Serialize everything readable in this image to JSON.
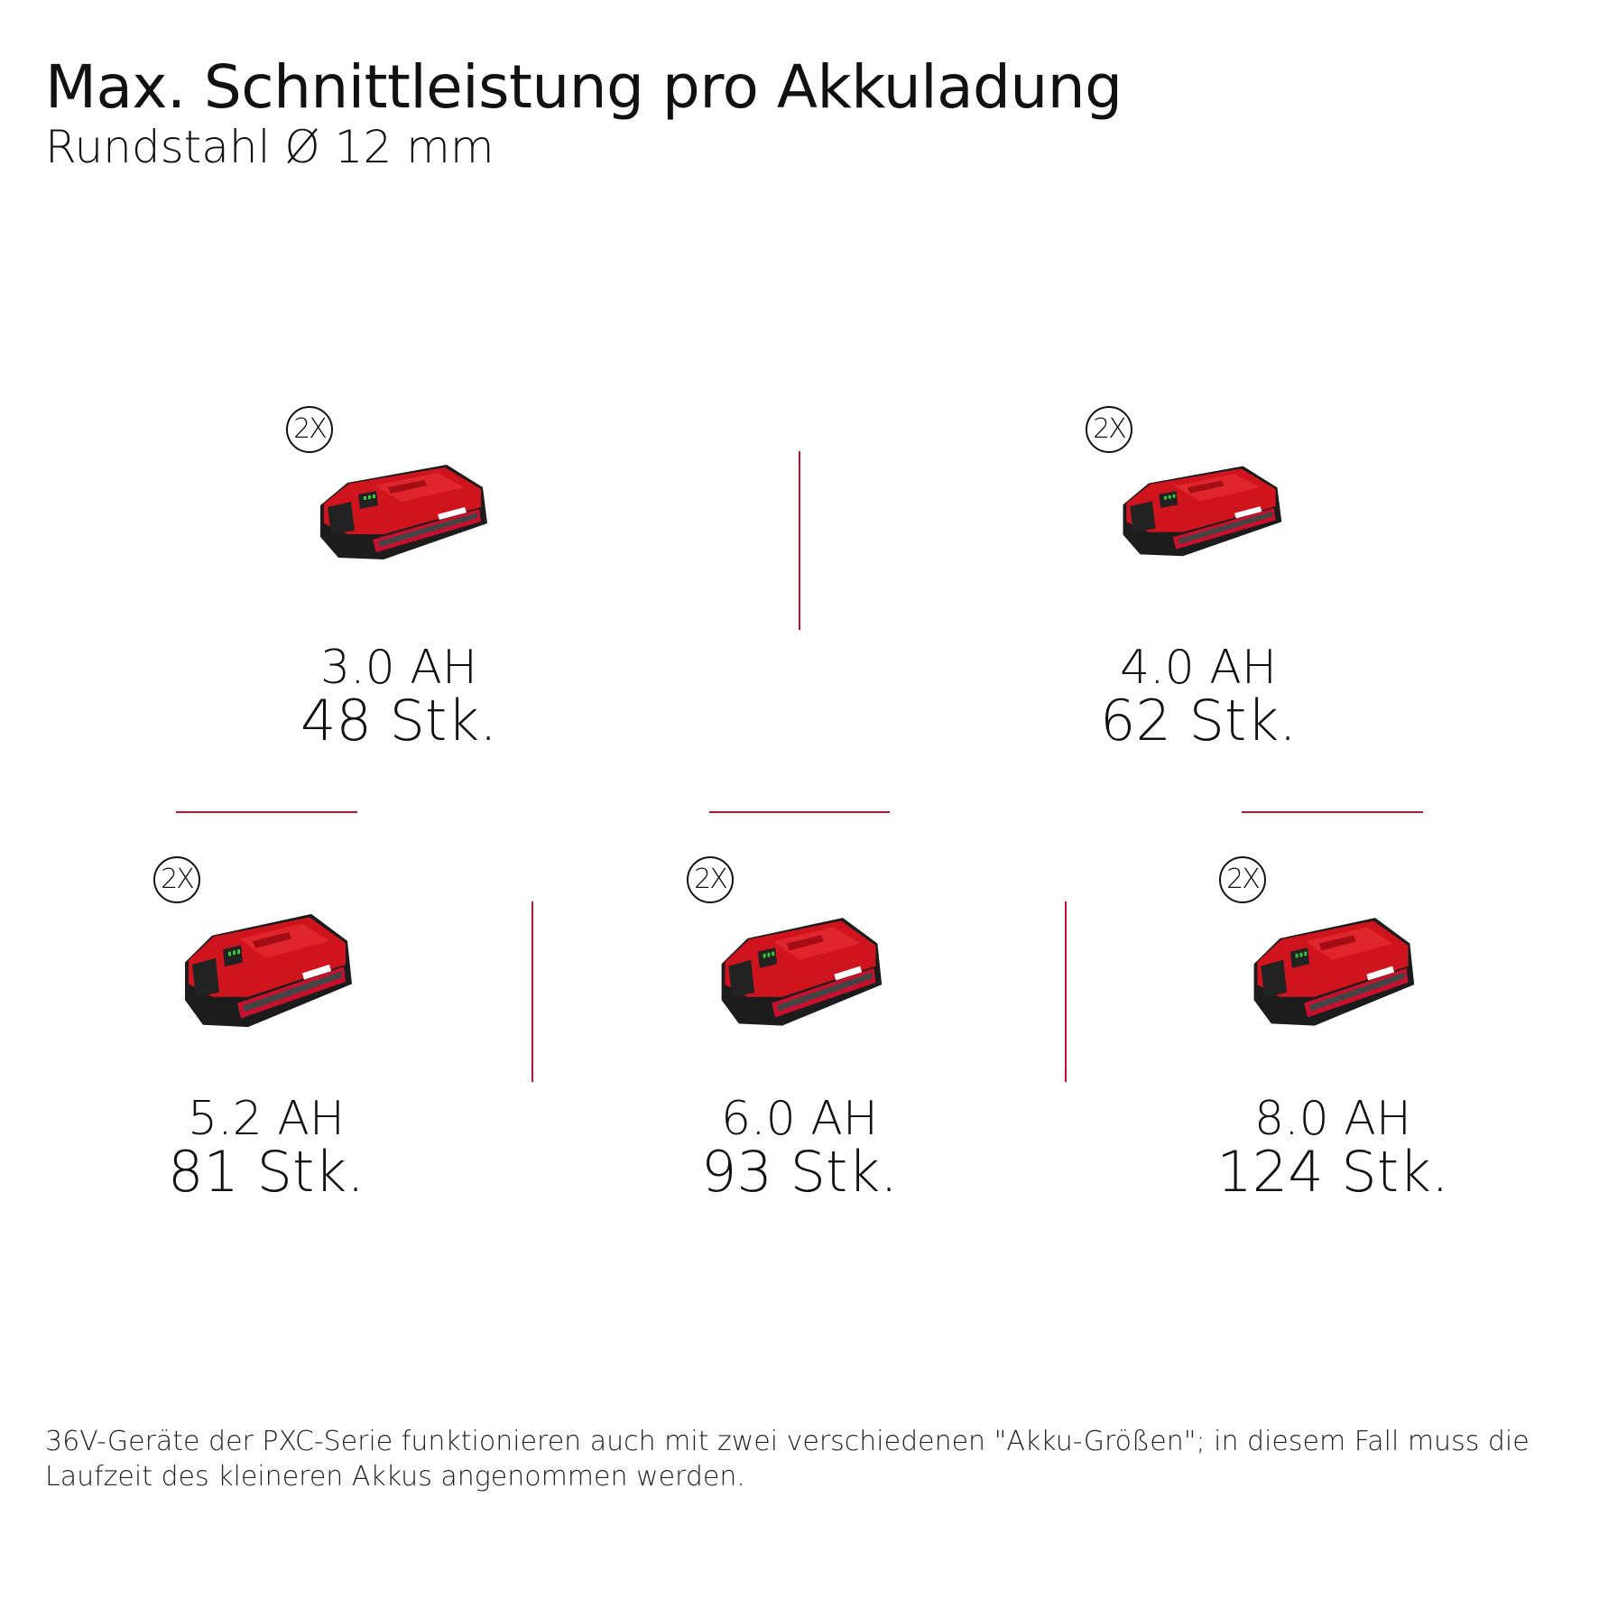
{
  "header": {
    "title": "Max. Schnittleistung pro Akkuladung",
    "subtitle": "Rundstahl Ø 12 mm"
  },
  "batteries": [
    {
      "capacity": "3.0 AH",
      "count": "48 Stk.",
      "quantity_badge": "2X",
      "icon": "battery-pack-3ah-icon"
    },
    {
      "capacity": "4.0 AH",
      "count": "62 Stk.",
      "quantity_badge": "2X",
      "icon": "battery-pack-4ah-icon"
    },
    {
      "capacity": "5.2 AH",
      "count": "81 Stk.",
      "quantity_badge": "2X",
      "icon": "battery-pack-5-2ah-icon"
    },
    {
      "capacity": "6.0 AH",
      "count": "93 Stk.",
      "quantity_badge": "2X",
      "icon": "battery-pack-6ah-icon"
    },
    {
      "capacity": "8.0 AH",
      "count": "124 Stk.",
      "quantity_badge": "2X",
      "icon": "battery-pack-8ah-icon"
    }
  ],
  "footnote": "36V-Geräte der PXC-Serie funktionieren auch mit zwei verschiedenen \"Akku-Größen\"; in diesem Fall muss die Laufzeit des kleineren Akkus angenommen werden.",
  "colors": {
    "accent": "#c8102e",
    "battery_red": "#d0141e",
    "battery_black": "#1c1c1c"
  }
}
